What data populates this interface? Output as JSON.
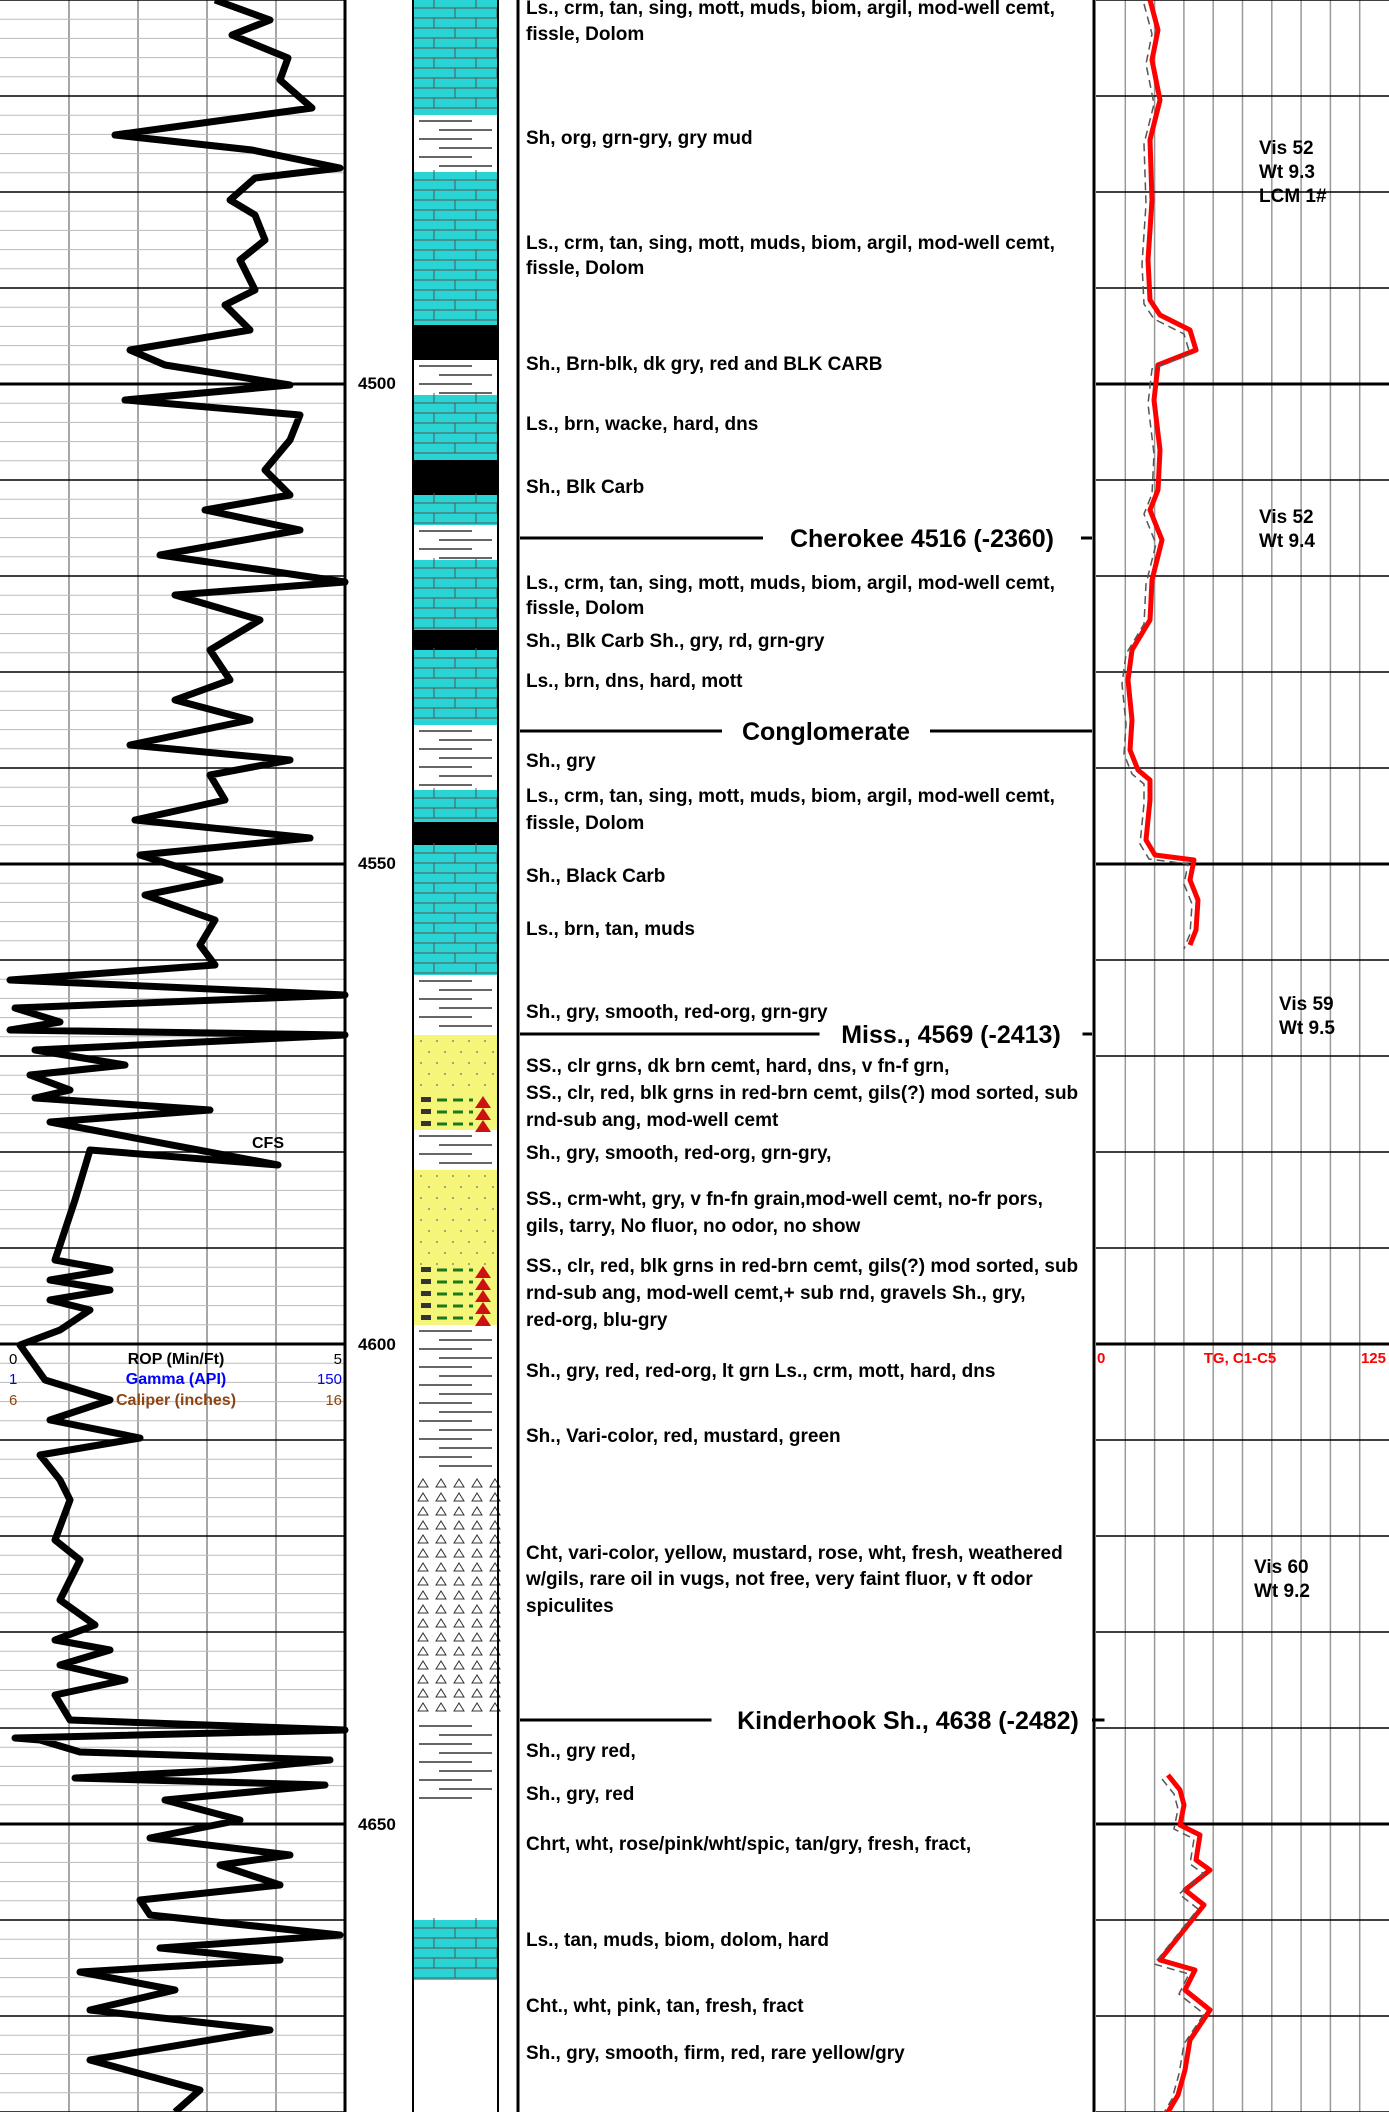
{
  "depth_labels": [
    "4500",
    "4550",
    "4600",
    "4650"
  ],
  "track1": {
    "curve_header": [
      {
        "scale_min": "0",
        "name": "ROP (Min/Ft)",
        "scale_max": "5",
        "color": "#000000"
      },
      {
        "scale_min": "1",
        "name": "Gamma (API)",
        "scale_max": "150",
        "color": "#0000ff"
      },
      {
        "scale_min": "6",
        "name": "Caliper (inches)",
        "scale_max": "16",
        "color": "#8b4513"
      }
    ],
    "annotation": "CFS"
  },
  "lithology_descriptions": [
    {
      "text": "Ls., crm, tan, sing, mott, muds, biom, argil, mod-well cemt,"
    },
    {
      "text": "fissle, Dolom"
    },
    {
      "text": "Sh, org, grn-gry, gry mud"
    },
    {
      "text": "Ls., crm, tan, sing, mott, muds, biom, argil, mod-well cemt,"
    },
    {
      "text": "fissle, Dolom"
    },
    {
      "text": "Sh., Brn-blk, dk gry, red and BLK CARB"
    },
    {
      "text": "Ls., brn, wacke, hard, dns"
    },
    {
      "text": "Sh., Blk Carb"
    },
    {
      "text": "Ls., crm, tan, sing, mott, muds, biom, argil, mod-well cemt,"
    },
    {
      "text": "fissle, Dolom"
    },
    {
      "text": "Sh., Blk Carb        Sh., gry, rd, grn-gry"
    },
    {
      "text": "Ls., brn, dns, hard, mott"
    },
    {
      "text": "Sh., gry"
    },
    {
      "text": "Ls., crm, tan, sing, mott, muds, biom, argil, mod-well cemt,"
    },
    {
      "text": "fissle, Dolom"
    },
    {
      "text": "Sh., Black Carb"
    },
    {
      "text": "Ls., brn, tan, muds"
    },
    {
      "text": "Sh., gry, smooth, red-org, grn-gry"
    },
    {
      "text": "SS., clr grns, dk brn cemt, hard, dns,  v fn-f grn,"
    },
    {
      "text": "SS., clr, red, blk grns in red-brn cemt, gils(?) mod sorted, sub"
    },
    {
      "text": "rnd-sub ang, mod-well cemt"
    },
    {
      "text": "Sh., gry, smooth, red-org, grn-gry,"
    },
    {
      "text": "SS., crm-wht, gry, v fn-fn grain,mod-well cemt,  no-fr pors,"
    },
    {
      "text": "gils, tarry,  No fluor, no odor, no show"
    },
    {
      "text": "SS., clr, red, blk grns in red-brn cemt, gils(?) mod sorted, sub"
    },
    {
      "text": "rnd-sub ang, mod-well cemt,+ sub rnd, gravels  Sh., gry,"
    },
    {
      "text": "red-org, blu-gry"
    },
    {
      "text": "Sh., gry, red, red-org, lt grn    Ls.,  crm, mott, hard, dns"
    },
    {
      "text": "Sh., Vari-color, red, mustard, green"
    },
    {
      "text": "Cht, vari-color, yellow, mustard, rose, wht, fresh, weathered"
    },
    {
      "text": "w/gils,  rare oil in vugs, not free, very faint fluor, v ft odor"
    },
    {
      "text": "spiculites"
    },
    {
      "text": "Sh.,  gry red,"
    },
    {
      "text": "Sh., gry, red"
    },
    {
      "text": "Chrt, wht, rose/pink/wht/spic, tan/gry, fresh, fract,"
    },
    {
      "text": "Ls., tan, muds, biom, dolom, hard"
    },
    {
      "text": "Cht., wht, pink, tan, fresh, fract"
    },
    {
      "text": "Sh., gry, smooth, firm, red, rare yellow/gry"
    }
  ],
  "formation_tops": [
    {
      "label": "Cherokee  4516  (-2360)"
    },
    {
      "label": "Conglomerate"
    },
    {
      "label": "Miss., 4569 (-2413)"
    },
    {
      "label": "Kinderhook Sh., 4638 (-2482)"
    }
  ],
  "mud_properties": [
    {
      "lines": [
        "Vis 52",
        "Wt 9.3",
        "LCM 1#"
      ]
    },
    {
      "lines": [
        "Vis 52",
        "Wt 9.4"
      ]
    },
    {
      "lines": [
        "Vis 59",
        "Wt 9.5"
      ]
    },
    {
      "lines": [
        "Vis 60",
        "Wt 9.2"
      ]
    }
  ],
  "gas_track": {
    "scale_min": "0",
    "name": "TG, C1-C5",
    "scale_max": "125",
    "color": "#ff0000"
  },
  "colors": {
    "limestone": "#2ad4d4",
    "sandstone": "#f5f57a",
    "carbonaceous_shale": "#000000",
    "gas_curve": "#ff0000"
  }
}
